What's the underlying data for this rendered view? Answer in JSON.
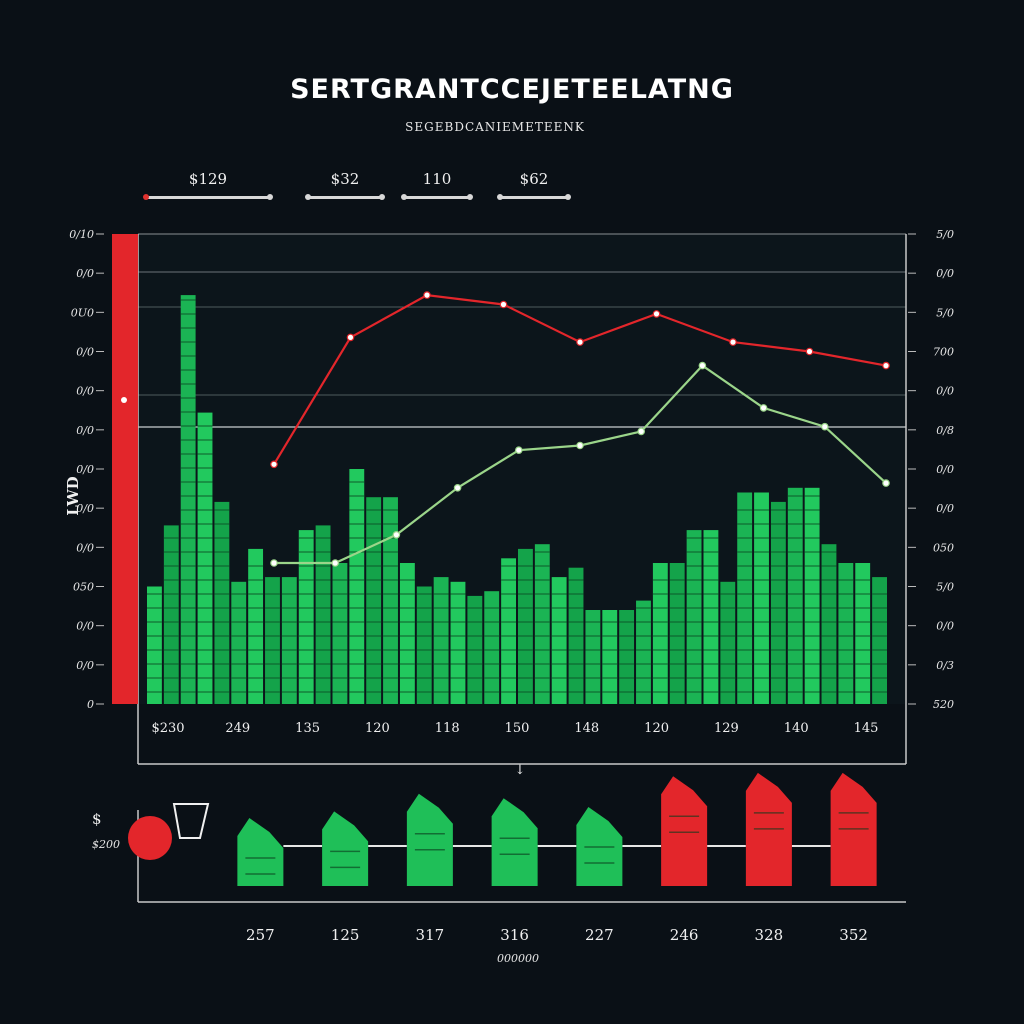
{
  "header": {
    "title": "SERTGRANTCCEJETEELATNG",
    "subtitle": "SEGEBDCANIEMETEENK",
    "stats": [
      {
        "value": "$129"
      },
      {
        "value": "$32"
      },
      {
        "value": "110"
      },
      {
        "value": "$62"
      }
    ]
  },
  "chart_data": [
    {
      "type": "bar",
      "title": "SERTGRANTCCEJETEELATNG",
      "subtitle": "SEGEBDCANIEMETEENK",
      "left_axis_label": "LWD",
      "y_ticks_left": [
        "0/10",
        "0/0",
        "0U0",
        "0/0",
        "0/0",
        "0/0",
        "0/0",
        "0/0",
        "0/0",
        "050",
        "0/0",
        "0/0",
        "0"
      ],
      "y_ticks_right": [
        "5/0",
        "0/0",
        "5/0",
        "700",
        "0/0",
        "0/8",
        "0/0",
        "0/0",
        "050",
        "5/0",
        "0/0",
        "0/3",
        "520"
      ],
      "x_labels": [
        "$230",
        "249",
        "135",
        "120",
        "118",
        "150",
        "148",
        "120",
        "129",
        "140",
        "145"
      ],
      "ylim": [
        0,
        100
      ],
      "colors": {
        "bull": "#1fbf58",
        "bear": "#e3262b",
        "accent": "#e3262b",
        "trend": "#9bd58a"
      },
      "series": [
        {
          "name": "green bars",
          "values": [
            25,
            38,
            87,
            62,
            43,
            26,
            33,
            27,
            27,
            37,
            38,
            30,
            50,
            44,
            44,
            30,
            25,
            27,
            26,
            23,
            24,
            31,
            33,
            34,
            27,
            29,
            20,
            20,
            20,
            22,
            30,
            30,
            37,
            37,
            26,
            45,
            45,
            43,
            46,
            46,
            34,
            30,
            30,
            27
          ]
        },
        {
          "name": "red line",
          "values": [
            51,
            78,
            87,
            85,
            77,
            83,
            77,
            75,
            72
          ]
        },
        {
          "name": "green line",
          "values": [
            30,
            30,
            36,
            46,
            54,
            55,
            58,
            72,
            63,
            59,
            47
          ]
        }
      ]
    },
    {
      "type": "bar",
      "categories": [
        "257",
        "125",
        "317",
        "316",
        "227",
        "246",
        "328",
        "352"
      ],
      "values": [
        40,
        46,
        62,
        58,
        50,
        78,
        81,
        81
      ],
      "bar_colors": [
        "green",
        "green",
        "green",
        "green",
        "green",
        "red",
        "red",
        "red"
      ],
      "left_label": "$200",
      "caption": "000000"
    }
  ]
}
